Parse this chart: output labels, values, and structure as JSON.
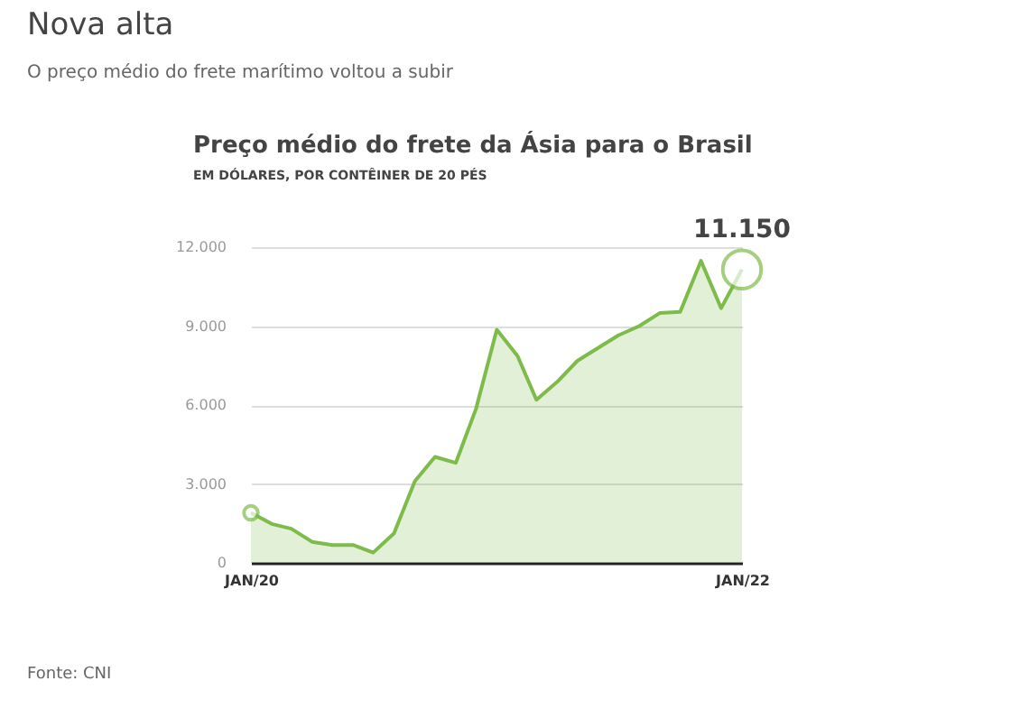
{
  "chart_data": {
    "type": "area",
    "title": "Preço médio do frete da Ásia para o Brasil",
    "subtitle": "EM DÓLARES, POR CONTÊINER DE 20 PÉS",
    "annotations": [
      "Nova alta",
      "O preço médio do frete marítimo voltou a subir",
      "Fonte: CNI",
      {
        "text": "11.150",
        "x": "2022-01",
        "y": 11150
      }
    ],
    "x": [
      "2020-01",
      "2020-02",
      "2020-03",
      "2020-04",
      "2020-05",
      "2020-06",
      "2020-07",
      "2020-08",
      "2020-09",
      "2020-10",
      "2020-11",
      "2020-12",
      "2021-01",
      "2021-02",
      "2021-03",
      "2021-04",
      "2021-05",
      "2021-07",
      "2021-08",
      "2021-09",
      "2021-10",
      "2021-11",
      "2021-12",
      "2022-01"
    ],
    "series": [
      {
        "color": "#7dbb4a",
        "values": [
          1900,
          1480,
          1300,
          800,
          680,
          680,
          390,
          1120,
          3100,
          4030,
          3800,
          5850,
          8860,
          7860,
          6200,
          6880,
          7680,
          8650,
          9000,
          9500,
          9540,
          11480,
          9680,
          11150
        ]
      }
    ],
    "xlim": [
      "2020-01",
      "2022-01"
    ],
    "xticks": [
      {
        "value": "2020-01",
        "label": "JAN/20"
      },
      {
        "value": "2022-01",
        "label": "JAN/22"
      }
    ],
    "ylim": [
      0,
      12000
    ],
    "yticks": [
      0,
      {
        "value": 3000,
        "label": "3.000"
      },
      {
        "value": 6000,
        "label": "6.000"
      },
      {
        "value": 9000,
        "label": "9.000"
      },
      {
        "value": 12000,
        "label": "12.000"
      }
    ],
    "grid": "y"
  }
}
